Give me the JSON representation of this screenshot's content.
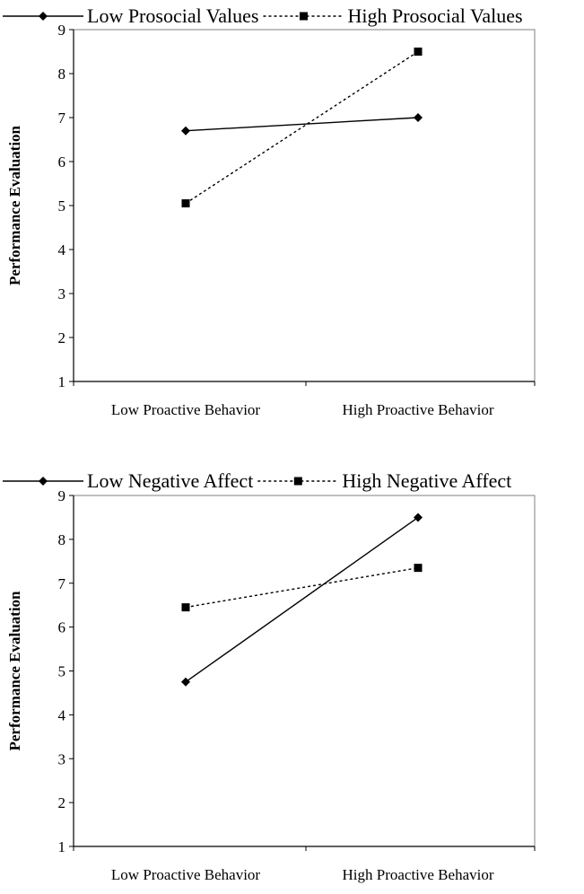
{
  "chart_data": [
    {
      "type": "line",
      "categories": [
        "Low Proactive Behavior",
        "High Proactive Behavior"
      ],
      "series": [
        {
          "name": "Low Prosocial Values",
          "values": [
            6.7,
            7.0
          ],
          "marker": "diamond",
          "line": "solid",
          "color": "#000000"
        },
        {
          "name": "High Prosocial Values",
          "values": [
            5.05,
            8.5
          ],
          "marker": "square",
          "line": "dotted",
          "color": "#000000"
        }
      ],
      "ylabel": "Performance Evaluation",
      "xlabel": "",
      "title": "",
      "ylim": [
        1,
        9
      ],
      "yticks": [
        "1",
        "2",
        "3",
        "4",
        "5",
        "6",
        "7",
        "8",
        "9"
      ],
      "grid": false,
      "legend": "top"
    },
    {
      "type": "line",
      "categories": [
        "Low Proactive Behavior",
        "High Proactive Behavior"
      ],
      "series": [
        {
          "name": "Low Negative Affect",
          "values": [
            4.75,
            8.5
          ],
          "marker": "diamond",
          "line": "solid",
          "color": "#000000"
        },
        {
          "name": "High Negative Affect",
          "values": [
            6.45,
            7.35
          ],
          "marker": "square",
          "line": "dotted",
          "color": "#000000"
        }
      ],
      "ylabel": "Performance Evaluation",
      "xlabel": "",
      "title": "",
      "ylim": [
        1,
        9
      ],
      "yticks": [
        "1",
        "2",
        "3",
        "4",
        "5",
        "6",
        "7",
        "8",
        "9"
      ],
      "grid": false,
      "legend": "top"
    }
  ]
}
